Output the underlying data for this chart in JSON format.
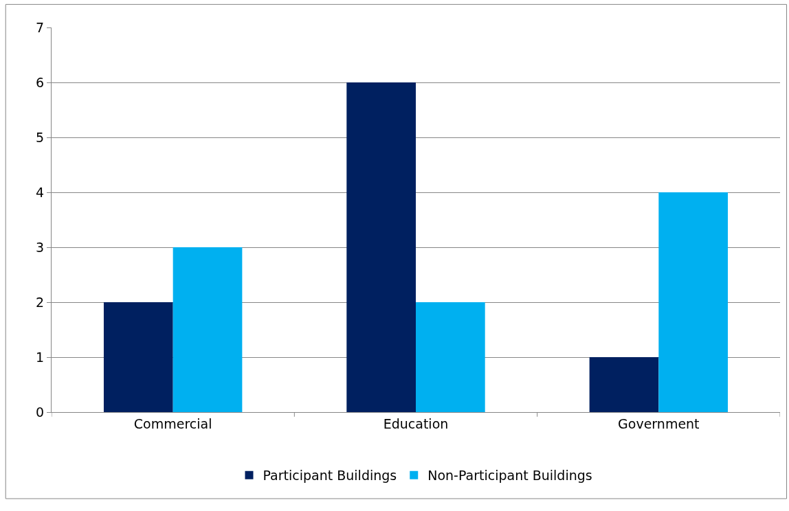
{
  "chart_data": {
    "type": "bar",
    "categories": [
      "Commercial",
      "Education",
      "Government"
    ],
    "series": [
      {
        "name": "Participant Buildings",
        "color": "#002060",
        "values": [
          2,
          6,
          1
        ]
      },
      {
        "name": "Non-Participant Buildings",
        "color": "#00b0f0",
        "values": [
          3,
          2,
          4
        ]
      }
    ],
    "ylim": [
      0,
      7
    ],
    "yticks": [
      0,
      1,
      2,
      3,
      4,
      5,
      6,
      7
    ],
    "grid": "y",
    "legend": "bottom"
  }
}
